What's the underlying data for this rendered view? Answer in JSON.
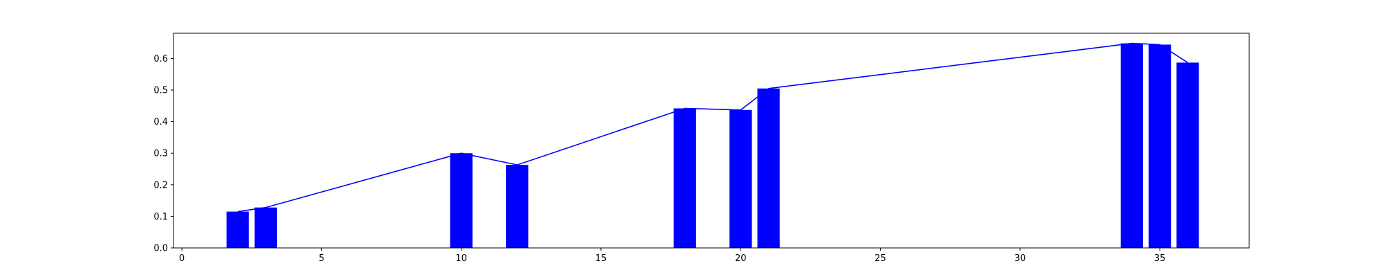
{
  "chart_data": {
    "type": "bar",
    "title": "",
    "xlabel": "",
    "ylabel": "",
    "xlim": [
      -0.3,
      38.2
    ],
    "ylim": [
      0,
      0.68
    ],
    "grid": false,
    "xticks": [
      0,
      5,
      10,
      15,
      20,
      25,
      30,
      35
    ],
    "yticks": [
      0.0,
      0.1,
      0.2,
      0.3,
      0.4,
      0.5,
      0.6
    ],
    "xtick_labels": [
      "0",
      "5",
      "10",
      "15",
      "20",
      "25",
      "30",
      "35"
    ],
    "ytick_labels": [
      "0.0",
      "0.1",
      "0.2",
      "0.3",
      "0.4",
      "0.5",
      "0.6"
    ],
    "bar_width": 0.8,
    "series": [
      {
        "x": [
          2,
          3,
          10,
          12,
          18,
          20,
          21,
          34,
          35,
          36
        ],
        "values": [
          0.115,
          0.128,
          0.3,
          0.263,
          0.442,
          0.437,
          0.505,
          0.648,
          0.644,
          0.587
        ],
        "color": "#0000ff"
      }
    ],
    "line": {
      "x": [
        2,
        3,
        10,
        12,
        18,
        20,
        21,
        34,
        35,
        36
      ],
      "values": [
        0.115,
        0.128,
        0.3,
        0.263,
        0.442,
        0.437,
        0.505,
        0.648,
        0.644,
        0.587
      ],
      "color": "#0000ff"
    }
  }
}
